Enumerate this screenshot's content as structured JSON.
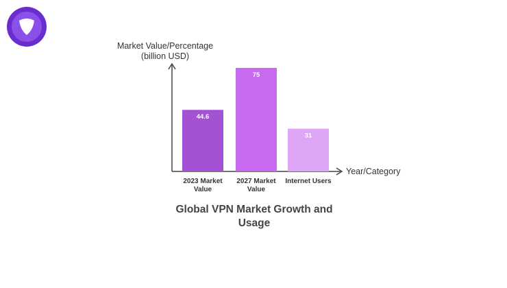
{
  "chart_data": {
    "type": "bar",
    "title": "Global VPN Market Growth and Usage",
    "y_label": "Market Value/Percentage (billion USD)",
    "x_label": "Year/Category",
    "categories": [
      "2023 Market Value",
      "2027 Market Value",
      "Internet Users"
    ],
    "values": [
      44.6,
      75,
      31
    ],
    "colors": [
      "#a452d4",
      "#c76aef",
      "#e0a6f6"
    ],
    "ylim": [
      0,
      78
    ]
  }
}
